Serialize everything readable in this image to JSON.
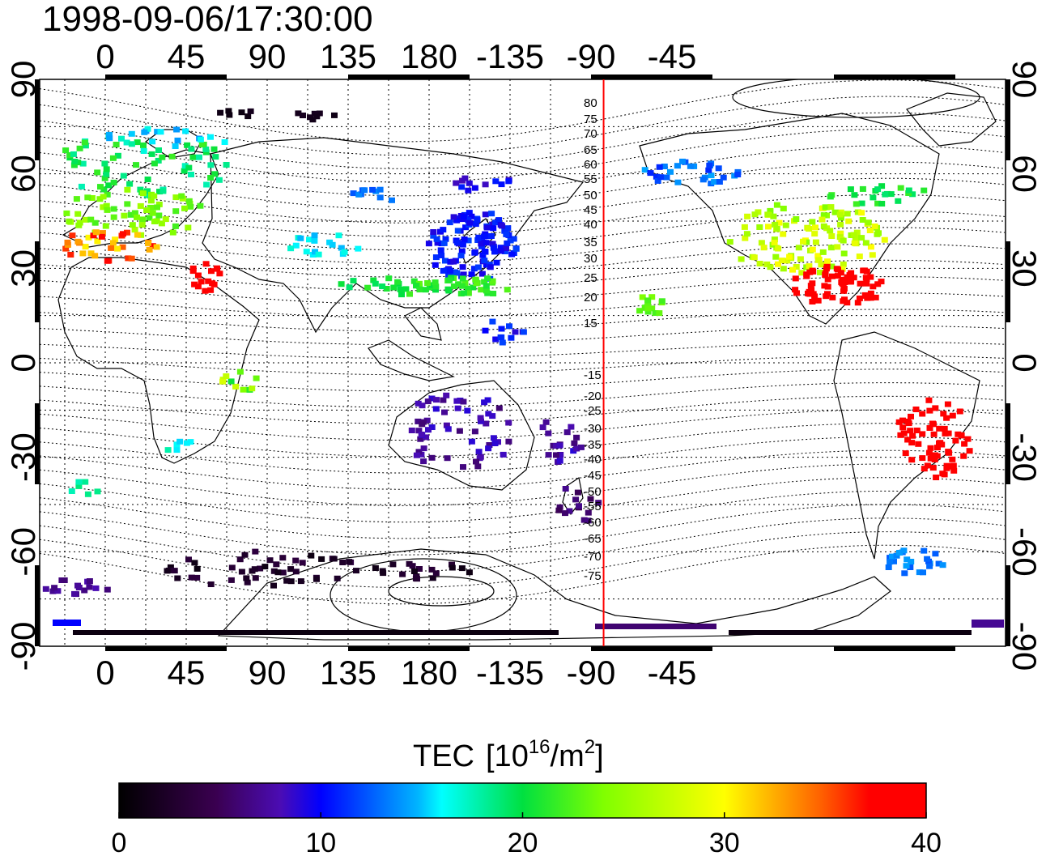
{
  "title": "1998-09-06/17:30:00",
  "x_ticks": [
    "0",
    "45",
    "90",
    "135",
    "180",
    "-135",
    "-90",
    "-45"
  ],
  "y_ticks": [
    "90",
    "60",
    "30",
    "0",
    "-30",
    "-60",
    "-90"
  ],
  "maglat_labels": {
    "north": [
      "80",
      "75",
      "70",
      "65",
      "60",
      "55",
      "50",
      "45",
      "40",
      "35",
      "30",
      "25",
      "20",
      "15"
    ],
    "south": [
      "-15",
      "-20",
      "-25",
      "-30",
      "-35",
      "-40",
      "-45",
      "-50",
      "-55",
      "-60",
      "-65",
      "-70",
      "-75"
    ]
  },
  "colorbar": {
    "label_main": "TEC",
    "label_unit_open": "[10",
    "label_unit_exp": "16",
    "label_unit_mid": "/m",
    "label_unit_exp2": "2",
    "label_unit_close": "]",
    "ticks": [
      "0",
      "10",
      "20",
      "30",
      "40"
    ],
    "min": 0,
    "max": 40
  },
  "marker_line": {
    "longitude": -83,
    "color": "#ff0000"
  },
  "colors": {
    "frame": "#000000",
    "grid": "#000000"
  }
}
